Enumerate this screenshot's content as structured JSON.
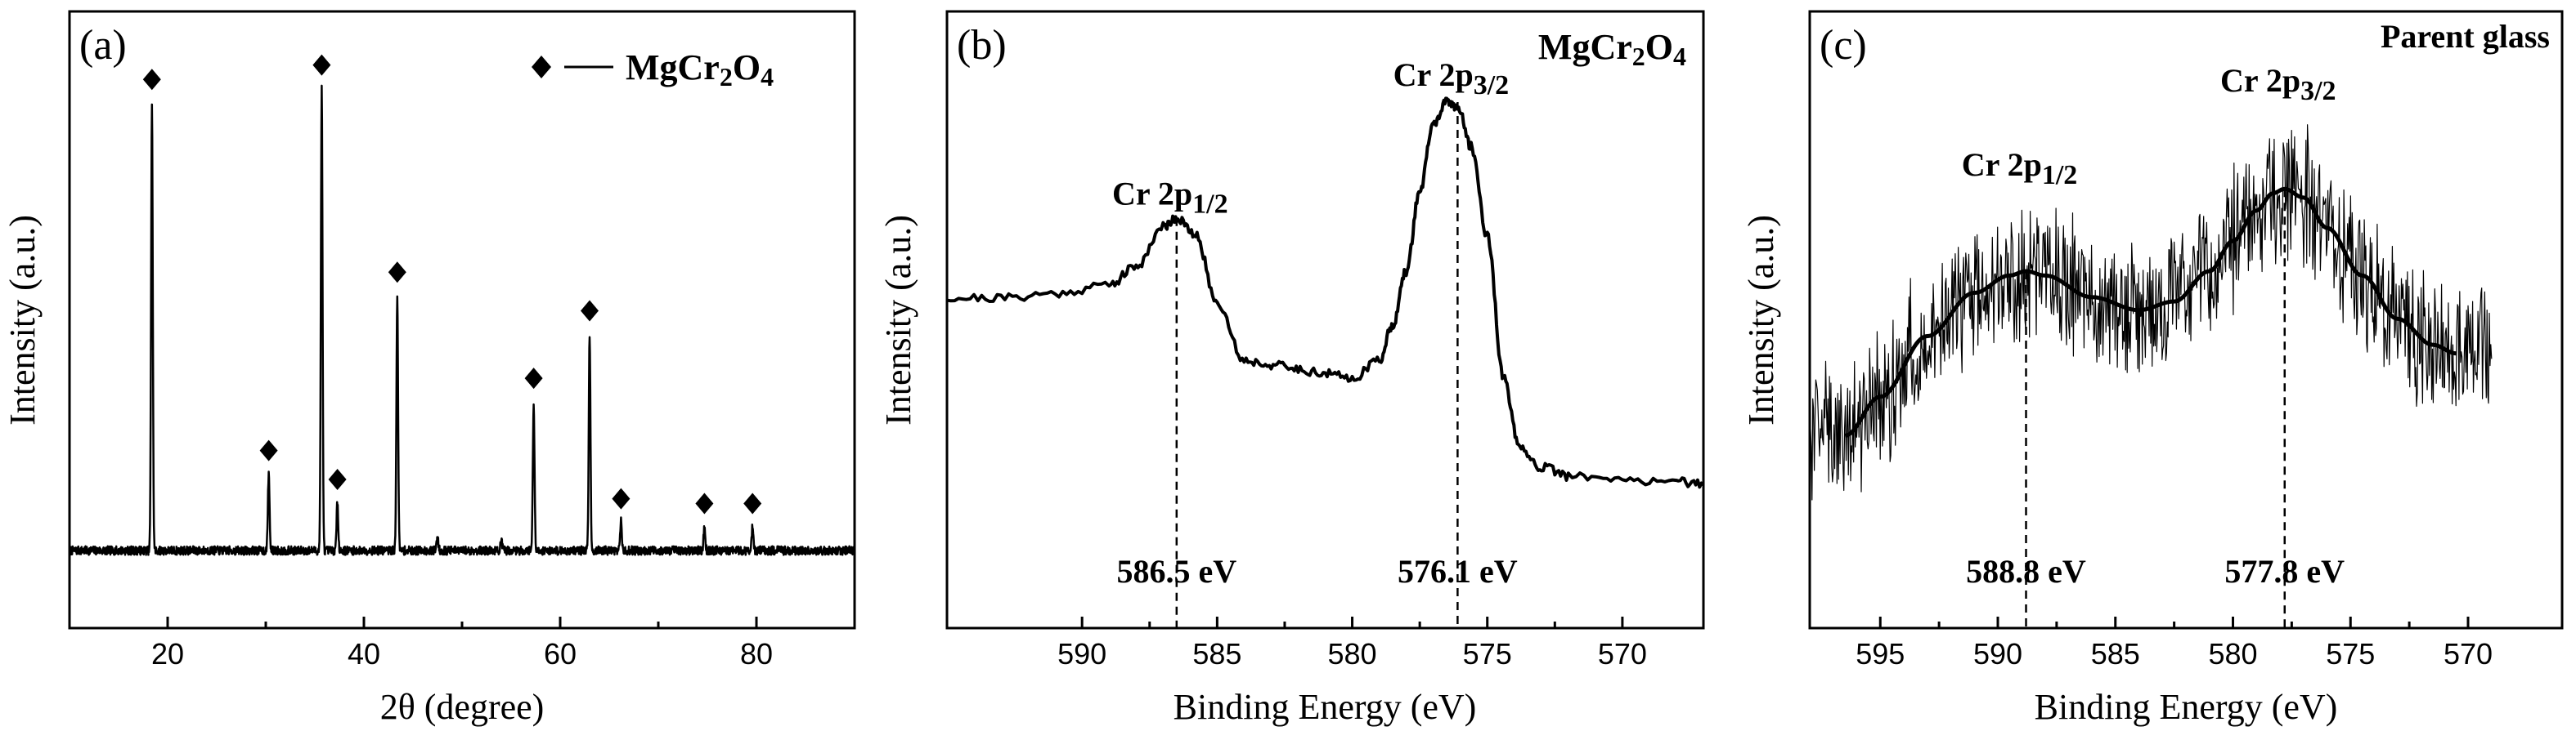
{
  "chart_data": [
    {
      "type": "line",
      "panel": "(a)",
      "xlabel": "2θ (degree)",
      "ylabel": "Intensity (a.u.)",
      "xlim": [
        10,
        90
      ],
      "ylim": [
        0,
        100
      ],
      "xticks": [
        20,
        40,
        60,
        80
      ],
      "legend": {
        "marker": "diamond",
        "phase_main": "MgCr",
        "sub1": "2",
        "mid": "O",
        "sub2": "4"
      },
      "peaks": [
        {
          "x": 18.4,
          "y": 93,
          "marked": true
        },
        {
          "x": 30.3,
          "y": 16,
          "marked": true
        },
        {
          "x": 35.7,
          "y": 96,
          "marked": true
        },
        {
          "x": 37.3,
          "y": 10,
          "marked": true
        },
        {
          "x": 43.4,
          "y": 53,
          "marked": true
        },
        {
          "x": 47.5,
          "y": 3,
          "marked": false
        },
        {
          "x": 54.0,
          "y": 2,
          "marked": false
        },
        {
          "x": 57.3,
          "y": 31,
          "marked": true
        },
        {
          "x": 63.0,
          "y": 45,
          "marked": true
        },
        {
          "x": 66.2,
          "y": 6,
          "marked": true
        },
        {
          "x": 74.7,
          "y": 5,
          "marked": true
        },
        {
          "x": 79.6,
          "y": 5,
          "marked": true
        }
      ],
      "baseline": 1
    },
    {
      "type": "line",
      "panel": "(b)",
      "xlabel": "Binding Energy (eV)",
      "ylabel": "Intensity (a.u.)",
      "xlim": [
        595,
        567
      ],
      "ylim": [
        0,
        100
      ],
      "xticks": [
        590,
        585,
        580,
        575,
        570
      ],
      "title": {
        "main": "MgCr",
        "sub1": "2",
        "mid": "O",
        "sub2": "4"
      },
      "x": [
        595.0,
        593.0,
        591.0,
        589.0,
        588.0,
        587.0,
        586.5,
        585.8,
        585.0,
        584.0,
        583.0,
        582.0,
        581.0,
        580.0,
        579.0,
        578.5,
        578.0,
        577.5,
        577.0,
        576.5,
        576.1,
        575.6,
        575.0,
        574.4,
        573.8,
        573.0,
        572.0,
        570.0,
        568.0,
        567.0
      ],
      "y": [
        56,
        56,
        57,
        59,
        63,
        72,
        74,
        70,
        55,
        42,
        41,
        40,
        39,
        38,
        42,
        50,
        62,
        80,
        95,
        100,
        99,
        90,
        70,
        38,
        22,
        18,
        16,
        15,
        15,
        14
      ],
      "annotations": [
        {
          "label_main": "Cr 2p",
          "label_sub": "1/2",
          "x": 586.5,
          "value_label": "586.5 eV"
        },
        {
          "label_main": "Cr 2p",
          "label_sub": "3/2",
          "x": 576.1,
          "value_label": "576.1 eV"
        }
      ]
    },
    {
      "type": "line",
      "panel": "(c)",
      "xlabel": "Binding Energy (eV)",
      "ylabel": "Intensity (a.u.)",
      "xlim": [
        598,
        566
      ],
      "ylim": [
        0,
        100
      ],
      "xticks": [
        595,
        590,
        585,
        580,
        575,
        570
      ],
      "title": "Parent glass",
      "fit": {
        "x": [
          596.5,
          595.0,
          593.0,
          591.0,
          589.5,
          588.8,
          588.0,
          586.0,
          584.0,
          582.5,
          581.0,
          580.0,
          579.0,
          578.3,
          577.8,
          577.0,
          576.0,
          574.5,
          573.0,
          571.5,
          570.5
        ],
        "y": [
          22,
          31,
          45,
          55,
          59,
          60,
          59,
          54,
          51,
          53,
          60,
          67,
          74,
          78,
          79,
          77,
          70,
          59,
          49,
          43,
          41
        ]
      },
      "noise_amplitude": 14,
      "data_range": [
        598,
        569
      ],
      "annotations": [
        {
          "label_main": "Cr 2p",
          "label_sub": "1/2",
          "x": 588.8,
          "value_label": "588.8 eV"
        },
        {
          "label_main": "Cr 2p",
          "label_sub": "3/2",
          "x": 577.8,
          "value_label": "577.8 eV"
        }
      ]
    }
  ]
}
